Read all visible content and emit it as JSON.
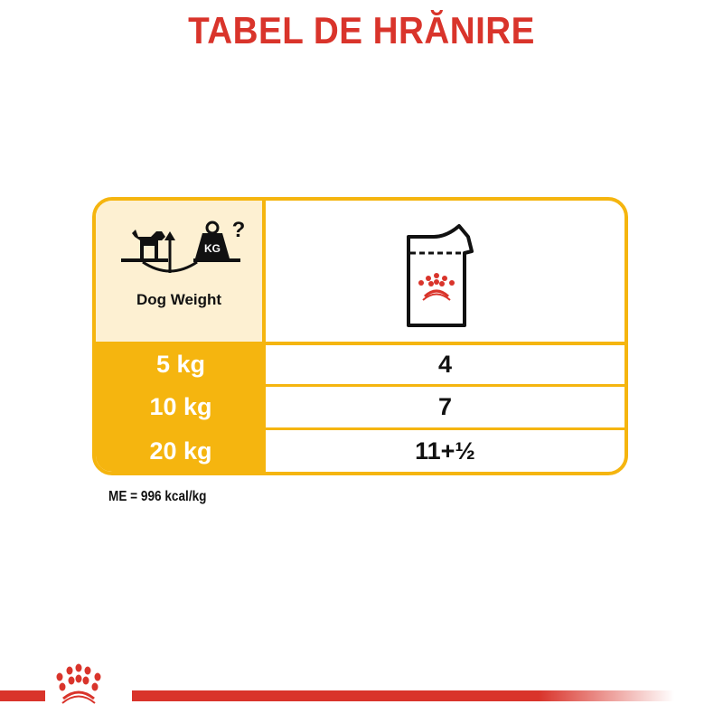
{
  "title": "TABEL DE HRĂNIRE",
  "table": {
    "header_left": "Dog Weight",
    "header_left_icon": "dog-scale-weight-icon",
    "header_right_icon": "wet-food-pouch-icon",
    "rows": [
      {
        "weight": "5 kg",
        "amount": "4"
      },
      {
        "weight": "10 kg",
        "amount": "7"
      },
      {
        "weight": "20 kg",
        "amount": "11+½"
      }
    ]
  },
  "footnote": "ME = 996 kcal/kg",
  "colors": {
    "title": "#d9342b",
    "accent": "#f5b50f",
    "header_bg": "#fdf0d2",
    "brand_red": "#d9342b"
  }
}
